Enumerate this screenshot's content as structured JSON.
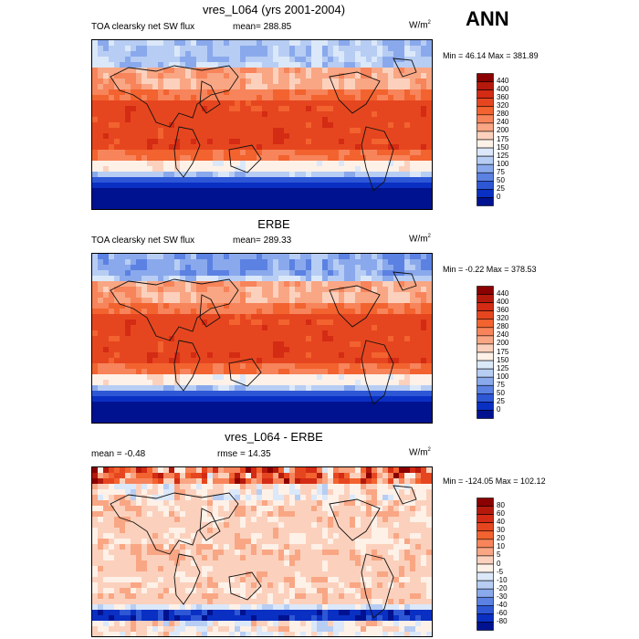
{
  "season": "ANN",
  "panels": [
    {
      "title": "vres_L064 (yrs 2001-2004)",
      "left_label": "TOA clearsky net SW flux",
      "center_label": "mean= 288.85",
      "units_base": "W/m",
      "units_sup": "2",
      "minmax": "Min =  46.14 Max = 381.89",
      "colorbar": "abs"
    },
    {
      "title": "ERBE",
      "left_label": "TOA clearsky net SW flux",
      "center_label": "mean= 289.33",
      "units_base": "W/m",
      "units_sup": "2",
      "minmax": "Min =  -0.22 Max = 378.53",
      "colorbar": "abs"
    },
    {
      "title": "vres_L064 - ERBE",
      "left_label": "mean =  -0.48",
      "center_label": "rmse =  14.35",
      "units_base": "W/m",
      "units_sup": "2",
      "minmax": "Min = -124.05 Max = 102.12",
      "colorbar": "diff"
    }
  ],
  "colorbars": {
    "abs": {
      "levels": [
        "440",
        "400",
        "360",
        "320",
        "280",
        "240",
        "200",
        "175",
        "150",
        "125",
        "100",
        "75",
        "50",
        "25",
        "0"
      ],
      "colors": [
        "#8b0000",
        "#b5190c",
        "#d42b14",
        "#e6461f",
        "#f2632f",
        "#f7845a",
        "#f9a684",
        "#fbd1bd",
        "#fef1e8",
        "#dbe8f9",
        "#b7cdf3",
        "#8aa9ec",
        "#5b81e2",
        "#2e57d6",
        "#0a2fc3",
        "#00128f"
      ]
    },
    "diff": {
      "levels": [
        "80",
        "60",
        "40",
        "30",
        "20",
        "10",
        "5",
        "0",
        "-5",
        "-10",
        "-20",
        "-30",
        "-40",
        "-60",
        "-80"
      ],
      "colors": [
        "#8b0000",
        "#b5190c",
        "#d42b14",
        "#e6461f",
        "#f2632f",
        "#f7845a",
        "#f9a684",
        "#fbd1bd",
        "#fef1e8",
        "#dbe8f9",
        "#b7cdf3",
        "#8aa9ec",
        "#5b81e2",
        "#2e57d6",
        "#0a2fc3",
        "#00128f"
      ]
    }
  }
}
